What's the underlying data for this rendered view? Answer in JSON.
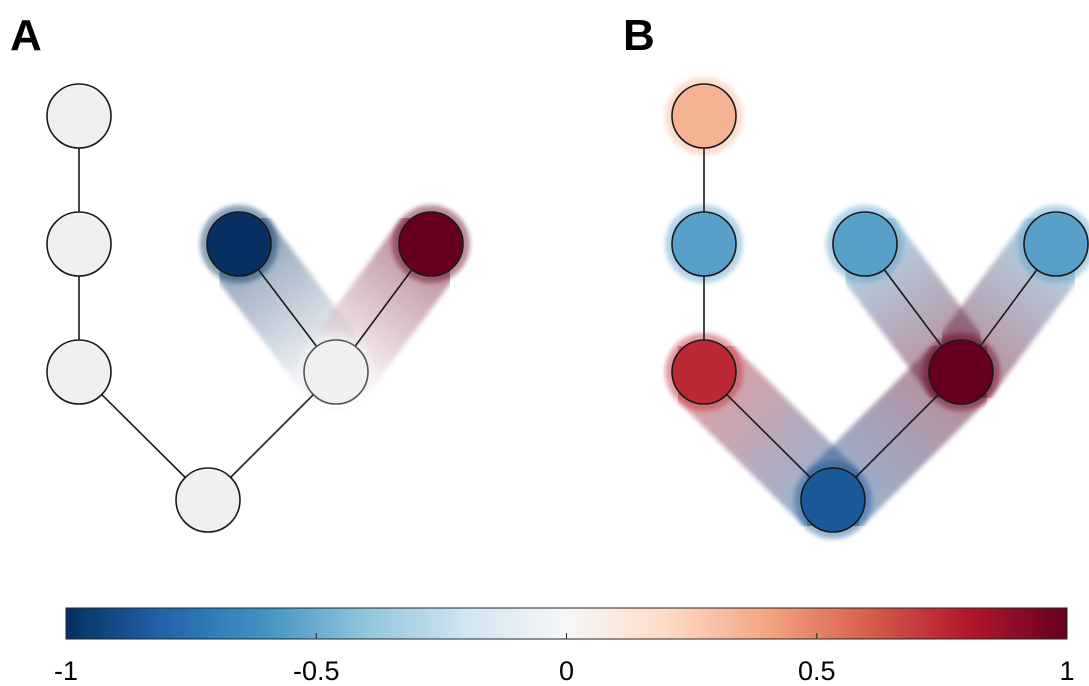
{
  "panels": [
    {
      "label": "A",
      "nodes": [
        {
          "id": "a1",
          "value": 0
        },
        {
          "id": "a2",
          "value": 0
        },
        {
          "id": "a3",
          "value": 0
        },
        {
          "id": "a4",
          "value": 0
        },
        {
          "id": "a5",
          "value": -1
        },
        {
          "id": "a6",
          "value": 1
        },
        {
          "id": "a7",
          "value": 0
        }
      ],
      "edges": [
        [
          "a1",
          "a2"
        ],
        [
          "a2",
          "a3"
        ],
        [
          "a3",
          "a4"
        ],
        [
          "a4",
          "a7"
        ],
        [
          "a7",
          "a5"
        ],
        [
          "a7",
          "a6"
        ]
      ],
      "halo_edges": [
        [
          "a7",
          "a5"
        ],
        [
          "a7",
          "a6"
        ]
      ]
    },
    {
      "label": "B",
      "nodes": [
        {
          "id": "b1",
          "value": 0.35
        },
        {
          "id": "b2",
          "value": -0.55
        },
        {
          "id": "b3",
          "value": 0.75
        },
        {
          "id": "b4",
          "value": -0.85
        },
        {
          "id": "b5",
          "value": -0.55
        },
        {
          "id": "b6",
          "value": -0.55
        },
        {
          "id": "b7",
          "value": 1
        }
      ],
      "edges": [
        [
          "b1",
          "b2"
        ],
        [
          "b2",
          "b3"
        ],
        [
          "b3",
          "b4"
        ],
        [
          "b4",
          "b7"
        ],
        [
          "b7",
          "b5"
        ],
        [
          "b7",
          "b6"
        ]
      ],
      "halo_edges": [
        [
          "b1",
          "b2"
        ],
        [
          "b2",
          "b3"
        ],
        [
          "b3",
          "b4"
        ],
        [
          "b4",
          "b7"
        ],
        [
          "b7",
          "b5"
        ],
        [
          "b7",
          "b6"
        ]
      ]
    }
  ],
  "colorbar": {
    "min": -1,
    "max": 1,
    "ticks": [
      "-1",
      "-0.5",
      "0",
      "0.5",
      "1"
    ],
    "tick_values": [
      -1,
      -0.5,
      0,
      0.5,
      1
    ],
    "colormap": [
      "#053061",
      "#2166ac",
      "#4393c3",
      "#92c5de",
      "#d1e5f0",
      "#f7f7f7",
      "#fddbc7",
      "#f4a582",
      "#d6604d",
      "#b2182b",
      "#67001f"
    ]
  }
}
